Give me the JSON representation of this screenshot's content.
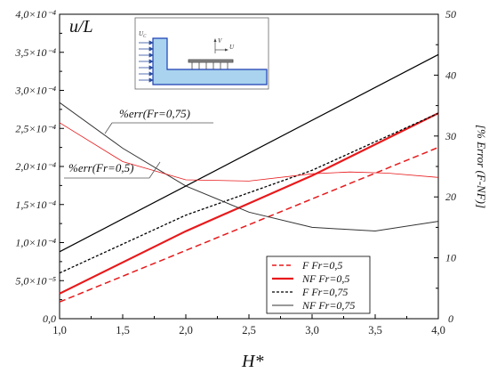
{
  "chart_data": {
    "type": "line",
    "title": "",
    "ylabel": "u/L",
    "y2label": "[% Error (F-NF)]",
    "xlabel": "H*",
    "xlim": [
      1.0,
      4.0
    ],
    "ylim": [
      0,
      0.0004
    ],
    "y2lim": [
      0,
      50
    ],
    "xticks": [
      1.0,
      1.5,
      2.0,
      2.5,
      3.0,
      3.5,
      4.0
    ],
    "xtick_labels": [
      "1,0",
      "1,5",
      "2,0",
      "2,5",
      "3,0",
      "3,5",
      "4,0"
    ],
    "yticks": [
      0,
      5e-05,
      0.0001,
      0.00015,
      0.0002,
      0.00025,
      0.0003,
      0.00035,
      0.0004
    ],
    "ytick_labels": [
      "0,0",
      "5,0×10⁻⁵",
      "1,0×10⁻⁴",
      "1,5×10⁻⁴",
      "2,0×10⁻⁴",
      "2,5×10⁻⁴",
      "3,0×10⁻⁴",
      "3,5×10⁻⁴",
      "4,0×10⁻⁴"
    ],
    "y2ticks": [
      0,
      10,
      20,
      30,
      40,
      50
    ],
    "y2tick_labels": [
      "0",
      "10",
      "20",
      "30",
      "40",
      "50"
    ],
    "grid": false,
    "legend_position": "bottom-right",
    "series": [
      {
        "name": "F    Fr=0,5",
        "axis": "left",
        "color": "#e8191b",
        "dash": "dashed",
        "width": 1.5,
        "x": [
          1.0,
          4.0
        ],
        "y": [
          2.2e-05,
          0.000225
        ]
      },
      {
        "name": "NF Fr=0,5",
        "axis": "left",
        "color": "#e8191b",
        "dash": "solid",
        "width": 2.2,
        "x": [
          1.0,
          2.0,
          3.0,
          4.0
        ],
        "y": [
          3.3e-05,
          0.000115,
          0.000188,
          0.00027
        ]
      },
      {
        "name": "F    Fr=0,75",
        "axis": "left",
        "color": "#000000",
        "dash": "dotted",
        "width": 1.3,
        "x": [
          1.0,
          2.0,
          3.0,
          4.0
        ],
        "y": [
          6e-05,
          0.000136,
          0.000195,
          0.00027
        ]
      },
      {
        "name": "NF Fr=0,75",
        "axis": "right",
        "color": "#333333",
        "dash": "solid",
        "width": 1.0,
        "x": [
          1.0,
          1.5,
          2.0,
          2.5,
          3.0,
          3.5,
          4.0
        ],
        "y": [
          35.5,
          28.0,
          21.8,
          17.5,
          15.0,
          14.4,
          16.0
        ]
      },
      {
        "name": "",
        "axis": "left",
        "color": "#000000",
        "dash": "solid",
        "width": 1.2,
        "x": [
          1.0,
          4.0
        ],
        "y": [
          8.8e-05,
          0.000347
        ]
      },
      {
        "name": "",
        "axis": "right",
        "color": "#e8191b",
        "dash": "solid",
        "width": 0.8,
        "x": [
          1.0,
          1.5,
          2.0,
          2.5,
          3.0,
          3.3,
          3.6,
          4.0
        ],
        "y": [
          32.2,
          25.8,
          22.8,
          22.6,
          23.8,
          24.1,
          23.9,
          23.2
        ]
      }
    ],
    "annotations": [
      {
        "text": "%err(Fr=0,75)"
      },
      {
        "text": "%err(Fr=0,5)"
      }
    ],
    "inset": {
      "label_uc": "U",
      "label_uc_sub": "C",
      "label_v": "V",
      "label_u": "U"
    }
  }
}
